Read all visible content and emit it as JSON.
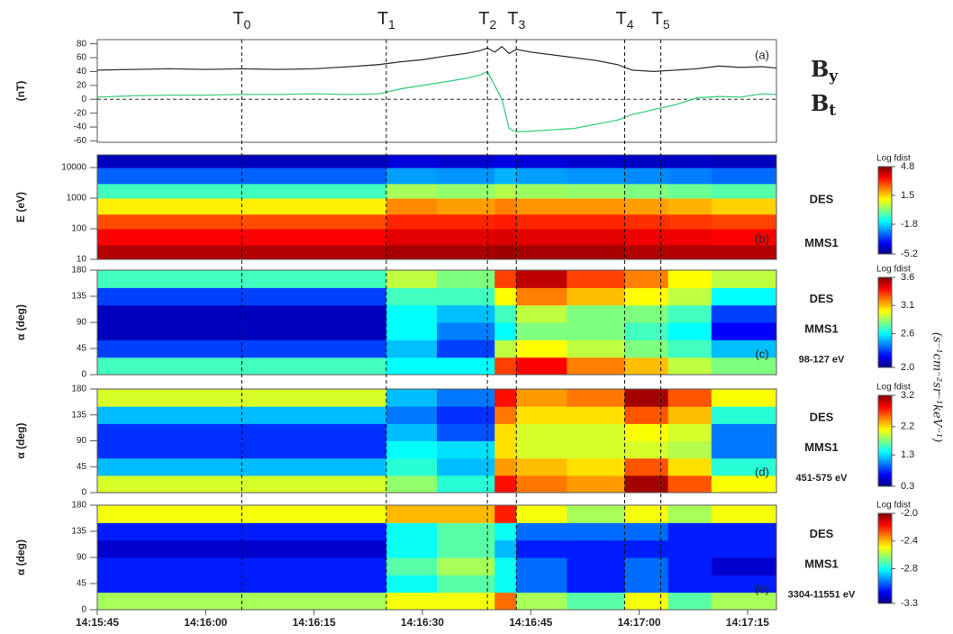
{
  "time_axis": {
    "xlim": [
      "14:15:45",
      "14:17:19"
    ],
    "xticks": [
      "14:15:45",
      "14:16:00",
      "14:16:15",
      "14:16:30",
      "14:16:45",
      "14:17:00",
      "14:17:15"
    ]
  },
  "markers": [
    {
      "label": "T0",
      "time": "14:16:05"
    },
    {
      "label": "T1",
      "time": "14:16:25"
    },
    {
      "label": "T2",
      "time": "14:16:39"
    },
    {
      "label": "T3",
      "time": "14:16:43"
    },
    {
      "label": "T4",
      "time": "14:16:58"
    },
    {
      "label": "T5",
      "time": "14:17:03"
    }
  ],
  "colorbar_unit": "(s⁻¹cm⁻²sr⁻¹keV⁻¹)",
  "chart_data": [
    {
      "type": "line",
      "panel": "(a)",
      "ylabel": "(nT)",
      "ylim": [
        -62,
        86
      ],
      "yticks": [
        -60,
        -40,
        -20,
        0,
        20,
        40,
        60,
        80
      ],
      "x": [
        "14:15:45",
        "14:15:50",
        "14:15:55",
        "14:16:00",
        "14:16:05",
        "14:16:10",
        "14:16:15",
        "14:16:20",
        "14:16:24",
        "14:16:27",
        "14:16:30",
        "14:16:33",
        "14:16:36",
        "14:16:38",
        "14:16:39",
        "14:16:40",
        "14:16:41",
        "14:16:42",
        "14:16:43",
        "14:16:45",
        "14:16:48",
        "14:16:51",
        "14:16:54",
        "14:16:57",
        "14:16:59",
        "14:17:02",
        "14:17:05",
        "14:17:08",
        "14:17:11",
        "14:17:14",
        "14:17:17",
        "14:17:19"
      ],
      "series": [
        {
          "name": "By",
          "color": "#3ccf7c",
          "values": [
            3,
            5,
            6,
            6,
            7,
            7,
            8,
            7,
            8,
            15,
            20,
            25,
            30,
            35,
            40,
            20,
            0,
            -42,
            -47,
            -46,
            -44,
            -42,
            -36,
            -30,
            -22,
            -15,
            -8,
            2,
            4,
            3,
            8,
            7
          ]
        },
        {
          "name": "Bt",
          "color": "#333333",
          "values": [
            42,
            43,
            44,
            43,
            44,
            43,
            44,
            47,
            50,
            54,
            57,
            62,
            66,
            70,
            74,
            68,
            76,
            66,
            72,
            68,
            64,
            60,
            56,
            50,
            42,
            40,
            42,
            44,
            48,
            46,
            47,
            45
          ]
        }
      ]
    },
    {
      "type": "heatmap",
      "panel": "(b)",
      "ylabel": "E (eV)",
      "ylog": true,
      "ylim": [
        10,
        26000
      ],
      "yticks": [
        10,
        100,
        1000,
        10000
      ],
      "labels": [
        "DES",
        "MMS1"
      ],
      "colorbar_label": "Log fdist",
      "clim": [
        -5.2,
        4.8
      ],
      "cticks": [
        4.8,
        1.5,
        -1.8,
        -5.2
      ],
      "x_edges": [
        "14:15:45",
        "14:16:25",
        "14:16:32",
        "14:16:40",
        "14:16:43",
        "14:16:50",
        "14:16:58",
        "14:17:04",
        "14:17:10",
        "14:17:19"
      ],
      "y_edges": [
        10,
        30,
        100,
        300,
        1000,
        3000,
        10000,
        26000
      ],
      "values": [
        [
          4.3,
          4.4,
          4.4,
          4.5,
          4.4,
          4.4,
          4.3,
          4.3,
          4.3
        ],
        [
          3.6,
          3.8,
          3.8,
          3.9,
          3.8,
          3.8,
          3.7,
          3.7,
          3.6
        ],
        [
          2.8,
          3.2,
          3.2,
          3.3,
          3.2,
          3.2,
          3.1,
          3.0,
          2.9
        ],
        [
          1.2,
          2.2,
          2.0,
          2.3,
          2.1,
          2.1,
          2.0,
          1.8,
          1.5
        ],
        [
          -0.8,
          0.2,
          0.0,
          0.3,
          0.1,
          0.0,
          -0.2,
          -0.4,
          -0.6
        ],
        [
          -3.0,
          -2.4,
          -2.5,
          -2.2,
          -2.4,
          -2.5,
          -2.6,
          -2.7,
          -2.9
        ],
        [
          -4.6,
          -4.3,
          -4.4,
          -4.2,
          -4.3,
          -4.4,
          -4.5,
          -4.5,
          -4.6
        ]
      ]
    },
    {
      "type": "heatmap",
      "panel": "(c)",
      "ylabel": "α (deg)",
      "ylim": [
        0,
        180
      ],
      "yticks": [
        0,
        45,
        90,
        135,
        180
      ],
      "labels": [
        "DES",
        "MMS1",
        "98-127 eV"
      ],
      "colorbar_label": "Log fdist",
      "clim": [
        2,
        3.6
      ],
      "cticks": [
        3.6,
        3.1,
        2.6,
        {
          "value": 2,
          "label": "2.0"
        }
      ],
      "x_edges": [
        "14:15:45",
        "14:16:25",
        "14:16:32",
        "14:16:40",
        "14:16:43",
        "14:16:50",
        "14:16:58",
        "14:17:04",
        "14:17:10",
        "14:17:19"
      ],
      "y_edges": [
        0,
        30,
        60,
        90,
        120,
        150,
        180
      ],
      "values": [
        [
          2.7,
          2.6,
          2.6,
          3.3,
          3.4,
          3.2,
          3.1,
          2.9,
          2.8
        ],
        [
          2.3,
          2.5,
          2.3,
          2.9,
          3.0,
          2.9,
          2.8,
          2.7,
          2.5
        ],
        [
          2.1,
          2.6,
          2.4,
          2.6,
          2.8,
          2.8,
          2.7,
          2.6,
          2.2
        ],
        [
          2.1,
          2.6,
          2.5,
          2.7,
          2.9,
          2.8,
          2.8,
          2.7,
          2.3
        ],
        [
          2.3,
          2.7,
          2.7,
          3.0,
          3.2,
          3.1,
          3.0,
          2.9,
          2.6
        ],
        [
          2.7,
          2.9,
          2.8,
          3.3,
          3.5,
          3.3,
          3.2,
          3.0,
          2.9
        ]
      ]
    },
    {
      "type": "heatmap",
      "panel": "(d)",
      "ylabel": "α (deg)",
      "ylim": [
        0,
        180
      ],
      "yticks": [
        0,
        45,
        90,
        135,
        180
      ],
      "labels": [
        "DES",
        "MMS1",
        "451-575 eV"
      ],
      "colorbar_label": "Log fdist",
      "clim": [
        0.3,
        3.2
      ],
      "cticks": [
        3.2,
        2.2,
        1.3,
        0.3
      ],
      "x_edges": [
        "14:15:45",
        "14:16:25",
        "14:16:32",
        "14:16:40",
        "14:16:43",
        "14:16:50",
        "14:16:58",
        "14:17:04",
        "14:17:10",
        "14:17:19"
      ],
      "y_edges": [
        0,
        30,
        60,
        90,
        120,
        150,
        180
      ],
      "values": [
        [
          2.0,
          1.8,
          1.5,
          2.8,
          2.5,
          2.4,
          3.1,
          2.6,
          2.1
        ],
        [
          1.2,
          1.5,
          1.2,
          2.4,
          2.3,
          2.2,
          2.6,
          2.2,
          1.5
        ],
        [
          0.8,
          1.4,
          1.3,
          2.2,
          2.0,
          2.0,
          2.0,
          1.9,
          1.0
        ],
        [
          0.8,
          1.2,
          0.9,
          2.2,
          2.0,
          2.0,
          2.1,
          2.0,
          1.0
        ],
        [
          1.2,
          1.0,
          0.8,
          2.5,
          2.2,
          2.2,
          2.6,
          2.3,
          1.5
        ],
        [
          2.0,
          1.2,
          1.0,
          2.8,
          2.4,
          2.5,
          3.1,
          2.6,
          2.1
        ]
      ]
    },
    {
      "type": "heatmap",
      "panel": "(e)",
      "ylabel": "α (deg)",
      "ylim": [
        0,
        180
      ],
      "yticks": [
        0,
        45,
        90,
        135,
        180
      ],
      "labels": [
        "DES",
        "MMS1",
        "3304-11551 eV"
      ],
      "colorbar_label": "Log fdist",
      "clim": [
        -3.3,
        -2
      ],
      "cticks": [
        {
          "value": -2,
          "label": "-2.0"
        },
        -2.4,
        -2.8,
        -3.3
      ],
      "x_edges": [
        "14:15:45",
        "14:16:25",
        "14:16:32",
        "14:16:40",
        "14:16:43",
        "14:16:50",
        "14:16:58",
        "14:17:04",
        "14:17:10",
        "14:17:19"
      ],
      "y_edges": [
        0,
        30,
        60,
        90,
        120,
        150,
        180
      ],
      "values": [
        [
          -2.6,
          -2.5,
          -2.5,
          -2.3,
          -2.6,
          -2.7,
          -2.5,
          -2.7,
          -2.6
        ],
        [
          -3.1,
          -2.8,
          -2.7,
          -2.8,
          -3.0,
          -3.1,
          -3.0,
          -3.1,
          -3.1
        ],
        [
          -3.1,
          -2.7,
          -2.6,
          -2.8,
          -3.0,
          -3.1,
          -3.0,
          -3.1,
          -3.2
        ],
        [
          -3.2,
          -2.8,
          -2.7,
          -2.9,
          -3.1,
          -3.1,
          -3.1,
          -3.1,
          -3.1
        ],
        [
          -3.1,
          -2.8,
          -2.7,
          -2.8,
          -3.0,
          -3.0,
          -3.0,
          -3.1,
          -3.1
        ],
        [
          -2.5,
          -2.4,
          -2.4,
          -2.2,
          -2.5,
          -2.6,
          -2.5,
          -2.6,
          -2.5
        ]
      ]
    }
  ]
}
